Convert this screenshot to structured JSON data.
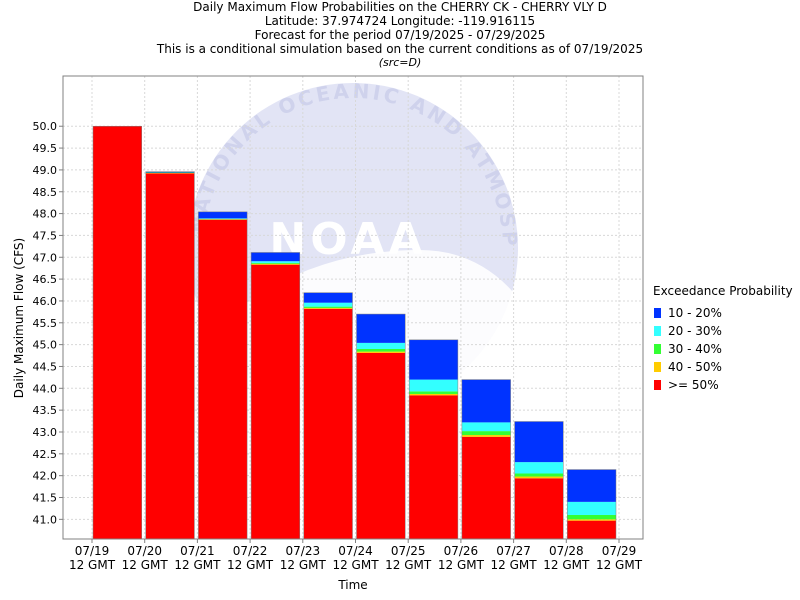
{
  "header": {
    "title": "Daily Maximum Flow Probabilities on the CHERRY CK - CHERRY VLY D",
    "location": "Latitude: 37.974724 Longitude: -119.916115",
    "period": "Forecast for the period 07/19/2025 - 07/29/2025",
    "note": "This is a conditional simulation based on the current conditions as of 07/19/2025",
    "source": "(src=D)"
  },
  "watermark": {
    "logo_text": "NOAA",
    "ring_text": "NATIONAL OCEANIC AND ATMOSPHERIC ADMINISTRATION"
  },
  "legend": {
    "title": "Exceedance Probability",
    "items": [
      {
        "label": "10 - 20%",
        "color": "#0033ff"
      },
      {
        "label": "20 - 30%",
        "color": "#33ffff"
      },
      {
        "label": "30 - 40%",
        "color": "#33ff33"
      },
      {
        "label": "40 - 50%",
        "color": "#ffcc00"
      },
      {
        "label": ">= 50%",
        "color": "#ff0000"
      }
    ]
  },
  "chart_data": {
    "type": "bar",
    "stacked": true,
    "xlabel": "Time",
    "ylabel": "Daily Maximum Flow (CFS)",
    "ylim": [
      40.55,
      51.15
    ],
    "yticks": [
      41.0,
      41.5,
      42.0,
      42.5,
      43.0,
      43.5,
      44.0,
      44.5,
      45.0,
      45.5,
      46.0,
      46.5,
      47.0,
      47.5,
      48.0,
      48.5,
      49.0,
      49.5,
      50.0
    ],
    "grid": true,
    "legend_position": "right",
    "x_ticks": [
      {
        "date": "07/19",
        "time": "12 GMT"
      },
      {
        "date": "07/20",
        "time": "12 GMT"
      },
      {
        "date": "07/21",
        "time": "12 GMT"
      },
      {
        "date": "07/22",
        "time": "12 GMT"
      },
      {
        "date": "07/23",
        "time": "12 GMT"
      },
      {
        "date": "07/24",
        "time": "12 GMT"
      },
      {
        "date": "07/25",
        "time": "12 GMT"
      },
      {
        "date": "07/26",
        "time": "12 GMT"
      },
      {
        "date": "07/27",
        "time": "12 GMT"
      },
      {
        "date": "07/28",
        "time": "12 GMT"
      },
      {
        "date": "07/29",
        "time": "12 GMT"
      }
    ],
    "bars_note": "each bar spans one day, starting at the tick date; values are cumulative flow tops (CFS) for each exceedance band",
    "bars": [
      {
        "day": "07/19",
        "p50": 50.0,
        "p40": 50.0,
        "p30": 50.0,
        "p20": 50.0,
        "p10": 50.0
      },
      {
        "day": "07/20",
        "p50": 48.92,
        "p40": 48.93,
        "p30": 48.94,
        "p20": 48.94,
        "p10": 48.96
      },
      {
        "day": "07/21",
        "p50": 47.86,
        "p40": 47.87,
        "p30": 47.88,
        "p20": 47.89,
        "p10": 48.04
      },
      {
        "day": "07/22",
        "p50": 46.83,
        "p40": 46.85,
        "p30": 46.87,
        "p20": 46.91,
        "p10": 47.11
      },
      {
        "day": "07/23",
        "p50": 45.82,
        "p40": 45.84,
        "p30": 45.87,
        "p20": 45.96,
        "p10": 46.19
      },
      {
        "day": "07/24",
        "p50": 44.81,
        "p40": 44.84,
        "p30": 44.9,
        "p20": 45.04,
        "p10": 45.7
      },
      {
        "day": "07/25",
        "p50": 43.84,
        "p40": 43.87,
        "p30": 43.93,
        "p20": 44.2,
        "p10": 45.11
      },
      {
        "day": "07/26",
        "p50": 42.89,
        "p40": 42.93,
        "p30": 43.02,
        "p20": 43.22,
        "p10": 44.2
      },
      {
        "day": "07/27",
        "p50": 41.94,
        "p40": 41.98,
        "p30": 42.05,
        "p20": 42.31,
        "p10": 43.24
      },
      {
        "day": "07/28",
        "p50": 40.97,
        "p40": 41.0,
        "p30": 41.1,
        "p20": 41.4,
        "p10": 42.14
      }
    ]
  }
}
